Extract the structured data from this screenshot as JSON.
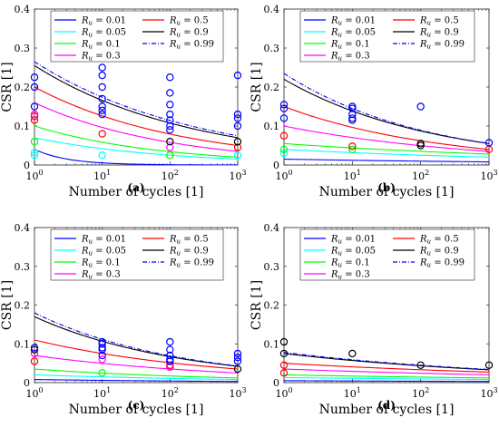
{
  "chart_data": [
    {
      "type": "line",
      "panel_label": "(a)",
      "xlabel": "Number of cycles [1]",
      "ylabel": "CSR [1]",
      "xscale": "log",
      "xlim": [
        1,
        1000
      ],
      "ylim": [
        0,
        0.4
      ],
      "x_ticks": [
        "10^0",
        "10^1",
        "10^2",
        "10^3"
      ],
      "y_ticks": [
        "0",
        "0.1",
        "0.2",
        "0.3",
        "0.4"
      ],
      "legend_position": "top",
      "legend": [
        "R_u = 0.01",
        "R_u = 0.05",
        "R_u = 0.1",
        "R_u = 0.3",
        "R_u = 0.5",
        "R_u = 0.9",
        "R_u = 0.99"
      ],
      "series": [
        {
          "name": "R_u = 0.01",
          "color": "#0000ff",
          "style": "solid",
          "x": [
            1,
            1000
          ],
          "y_start": 0.04,
          "y_end": 0.0
        },
        {
          "name": "R_u = 0.05",
          "color": "#00ffff",
          "style": "solid",
          "x": [
            1,
            1000
          ],
          "y_start": 0.07,
          "y_end": 0.015
        },
        {
          "name": "R_u = 0.1",
          "color": "#00ff00",
          "style": "solid",
          "x": [
            1,
            1000
          ],
          "y_start": 0.1,
          "y_end": 0.02
        },
        {
          "name": "R_u = 0.3",
          "color": "#ff00ff",
          "style": "solid",
          "x": [
            1,
            1000
          ],
          "y_start": 0.16,
          "y_end": 0.035
        },
        {
          "name": "R_u = 0.5",
          "color": "#ff0000",
          "style": "solid",
          "x": [
            1,
            1000
          ],
          "y_start": 0.2,
          "y_end": 0.05
        },
        {
          "name": "R_u = 0.9",
          "color": "#000000",
          "style": "solid",
          "x": [
            1,
            1000
          ],
          "y_start": 0.255,
          "y_end": 0.07
        },
        {
          "name": "R_u = 0.99",
          "color": "#0000ff",
          "style": "dashdot",
          "x": [
            1,
            1000
          ],
          "y_start": 0.265,
          "y_end": 0.075
        }
      ],
      "points": [
        {
          "x": 1,
          "y": 0.025,
          "color": "#00ffff"
        },
        {
          "x": 1,
          "y": 0.032,
          "color": "#00ffff"
        },
        {
          "x": 1,
          "y": 0.06,
          "color": "#00ff00"
        },
        {
          "x": 1,
          "y": 0.115,
          "color": "#ff0000"
        },
        {
          "x": 1,
          "y": 0.125,
          "color": "#ff0000"
        },
        {
          "x": 1,
          "y": 0.13,
          "color": "#ff00ff"
        },
        {
          "x": 1,
          "y": 0.15,
          "color": "#0000ff"
        },
        {
          "x": 1,
          "y": 0.2,
          "color": "#0000ff"
        },
        {
          "x": 1,
          "y": 0.225,
          "color": "#0000ff"
        },
        {
          "x": 10,
          "y": 0.025,
          "color": "#00ffff"
        },
        {
          "x": 10,
          "y": 0.08,
          "color": "#ff0000"
        },
        {
          "x": 10,
          "y": 0.13,
          "color": "#0000ff"
        },
        {
          "x": 10,
          "y": 0.14,
          "color": "#0000ff"
        },
        {
          "x": 10,
          "y": 0.15,
          "color": "#0000ff"
        },
        {
          "x": 10,
          "y": 0.17,
          "color": "#0000ff"
        },
        {
          "x": 10,
          "y": 0.2,
          "color": "#0000ff"
        },
        {
          "x": 10,
          "y": 0.23,
          "color": "#0000ff"
        },
        {
          "x": 10,
          "y": 0.25,
          "color": "#0000ff"
        },
        {
          "x": 100,
          "y": 0.025,
          "color": "#00ff00"
        },
        {
          "x": 100,
          "y": 0.045,
          "color": "#ff00ff"
        },
        {
          "x": 100,
          "y": 0.06,
          "color": "#000000"
        },
        {
          "x": 100,
          "y": 0.09,
          "color": "#0000ff"
        },
        {
          "x": 100,
          "y": 0.1,
          "color": "#0000ff"
        },
        {
          "x": 100,
          "y": 0.115,
          "color": "#0000ff"
        },
        {
          "x": 100,
          "y": 0.13,
          "color": "#0000ff"
        },
        {
          "x": 100,
          "y": 0.155,
          "color": "#0000ff"
        },
        {
          "x": 100,
          "y": 0.185,
          "color": "#0000ff"
        },
        {
          "x": 100,
          "y": 0.225,
          "color": "#0000ff"
        },
        {
          "x": 1000,
          "y": 0.025,
          "color": "#00ffff"
        },
        {
          "x": 1000,
          "y": 0.045,
          "color": "#ff0000"
        },
        {
          "x": 1000,
          "y": 0.06,
          "color": "#000000"
        },
        {
          "x": 1000,
          "y": 0.1,
          "color": "#0000ff"
        },
        {
          "x": 1000,
          "y": 0.12,
          "color": "#0000ff"
        },
        {
          "x": 1000,
          "y": 0.13,
          "color": "#0000ff"
        },
        {
          "x": 1000,
          "y": 0.23,
          "color": "#0000ff"
        }
      ]
    },
    {
      "type": "line",
      "panel_label": "(b)",
      "xlabel": "Number of cycles [1]",
      "ylabel": "CSR [1]",
      "xscale": "log",
      "xlim": [
        1,
        1000
      ],
      "ylim": [
        0,
        0.4
      ],
      "x_ticks": [
        "10^0",
        "10^1",
        "10^2",
        "10^3"
      ],
      "y_ticks": [
        "0",
        "0.1",
        "0.2",
        "0.3",
        "0.4"
      ],
      "legend_position": "top",
      "legend": [
        "R_u = 0.01",
        "R_u = 0.05",
        "R_u = 0.1",
        "R_u = 0.3",
        "R_u = 0.5",
        "R_u = 0.9",
        "R_u = 0.99"
      ],
      "series": [
        {
          "name": "R_u = 0.01",
          "color": "#0000ff",
          "style": "solid",
          "x": [
            1,
            1000
          ],
          "y_start": 0.015,
          "y_end": 0.008
        },
        {
          "name": "R_u = 0.05",
          "color": "#00ffff",
          "style": "solid",
          "x": [
            1,
            1000
          ],
          "y_start": 0.04,
          "y_end": 0.02
        },
        {
          "name": "R_u = 0.1",
          "color": "#00ff00",
          "style": "solid",
          "x": [
            1,
            1000
          ],
          "y_start": 0.055,
          "y_end": 0.028
        },
        {
          "name": "R_u = 0.3",
          "color": "#ff00ff",
          "style": "solid",
          "x": [
            1,
            1000
          ],
          "y_start": 0.1,
          "y_end": 0.035
        },
        {
          "name": "R_u = 0.5",
          "color": "#ff0000",
          "style": "solid",
          "x": [
            1,
            1000
          ],
          "y_start": 0.15,
          "y_end": 0.04
        },
        {
          "name": "R_u = 0.9",
          "color": "#000000",
          "style": "solid",
          "x": [
            1,
            1000
          ],
          "y_start": 0.22,
          "y_end": 0.055
        },
        {
          "name": "R_u = 0.99",
          "color": "#0000ff",
          "style": "dashdot",
          "x": [
            1,
            1000
          ],
          "y_start": 0.235,
          "y_end": 0.055
        }
      ],
      "points": [
        {
          "x": 1,
          "y": 0.03,
          "color": "#00ffff"
        },
        {
          "x": 1,
          "y": 0.04,
          "color": "#00ff00"
        },
        {
          "x": 1,
          "y": 0.075,
          "color": "#ff0000"
        },
        {
          "x": 1,
          "y": 0.12,
          "color": "#0000ff"
        },
        {
          "x": 1,
          "y": 0.145,
          "color": "#0000ff"
        },
        {
          "x": 1,
          "y": 0.155,
          "color": "#0000ff"
        },
        {
          "x": 10,
          "y": 0.04,
          "color": "#00ff00"
        },
        {
          "x": 10,
          "y": 0.048,
          "color": "#ff0000"
        },
        {
          "x": 10,
          "y": 0.115,
          "color": "#0000ff"
        },
        {
          "x": 10,
          "y": 0.12,
          "color": "#0000ff"
        },
        {
          "x": 10,
          "y": 0.13,
          "color": "#0000ff"
        },
        {
          "x": 10,
          "y": 0.145,
          "color": "#0000ff"
        },
        {
          "x": 10,
          "y": 0.15,
          "color": "#0000ff"
        },
        {
          "x": 100,
          "y": 0.05,
          "color": "#000000"
        },
        {
          "x": 100,
          "y": 0.055,
          "color": "#000000"
        },
        {
          "x": 100,
          "y": 0.15,
          "color": "#0000ff"
        },
        {
          "x": 1000,
          "y": 0.04,
          "color": "#ff0000"
        },
        {
          "x": 1000,
          "y": 0.057,
          "color": "#0000ff"
        }
      ]
    },
    {
      "type": "line",
      "panel_label": "(c)",
      "xlabel": "Number of cycles [1]",
      "ylabel": "CSR [1]",
      "xscale": "log",
      "xlim": [
        1,
        1000
      ],
      "ylim": [
        0,
        0.4
      ],
      "x_ticks": [
        "10^0",
        "10^1",
        "10^2",
        "10^3"
      ],
      "y_ticks": [
        "0",
        "0.1",
        "0.2",
        "0.3",
        "0.4"
      ],
      "legend_position": "top",
      "legend": [
        "R_u = 0.01",
        "R_u = 0.05",
        "R_u = 0.1",
        "R_u = 0.3",
        "R_u = 0.5",
        "R_u = 0.9",
        "R_u = 0.99"
      ],
      "series": [
        {
          "name": "R_u = 0.01",
          "color": "#0000ff",
          "style": "solid",
          "x": [
            1,
            1000
          ],
          "y_start": 0.008,
          "y_end": 0.003
        },
        {
          "name": "R_u = 0.05",
          "color": "#00ffff",
          "style": "solid",
          "x": [
            1,
            1000
          ],
          "y_start": 0.02,
          "y_end": 0.008
        },
        {
          "name": "R_u = 0.1",
          "color": "#00ff00",
          "style": "solid",
          "x": [
            1,
            1000
          ],
          "y_start": 0.035,
          "y_end": 0.012
        },
        {
          "name": "R_u = 0.3",
          "color": "#ff00ff",
          "style": "solid",
          "x": [
            1,
            1000
          ],
          "y_start": 0.07,
          "y_end": 0.025
        },
        {
          "name": "R_u = 0.5",
          "color": "#ff0000",
          "style": "solid",
          "x": [
            1,
            1000
          ],
          "y_start": 0.11,
          "y_end": 0.035
        },
        {
          "name": "R_u = 0.9",
          "color": "#000000",
          "style": "solid",
          "x": [
            1,
            1000
          ],
          "y_start": 0.17,
          "y_end": 0.042
        },
        {
          "name": "R_u = 0.99",
          "color": "#0000ff",
          "style": "dashdot",
          "x": [
            1,
            1000
          ],
          "y_start": 0.18,
          "y_end": 0.043
        }
      ],
      "points": [
        {
          "x": 1,
          "y": 0.055,
          "color": "#ff0000"
        },
        {
          "x": 1,
          "y": 0.075,
          "color": "#ff00ff"
        },
        {
          "x": 1,
          "y": 0.085,
          "color": "#000000"
        },
        {
          "x": 1,
          "y": 0.09,
          "color": "#0000ff"
        },
        {
          "x": 10,
          "y": 0.025,
          "color": "#00ff00"
        },
        {
          "x": 10,
          "y": 0.06,
          "color": "#ff00ff"
        },
        {
          "x": 10,
          "y": 0.07,
          "color": "#0000ff"
        },
        {
          "x": 10,
          "y": 0.085,
          "color": "#0000ff"
        },
        {
          "x": 10,
          "y": 0.09,
          "color": "#0000ff"
        },
        {
          "x": 10,
          "y": 0.1,
          "color": "#0000ff"
        },
        {
          "x": 10,
          "y": 0.105,
          "color": "#0000ff"
        },
        {
          "x": 100,
          "y": 0.04,
          "color": "#ff00ff"
        },
        {
          "x": 100,
          "y": 0.045,
          "color": "#ff0000"
        },
        {
          "x": 100,
          "y": 0.055,
          "color": "#0000ff"
        },
        {
          "x": 100,
          "y": 0.06,
          "color": "#0000ff"
        },
        {
          "x": 100,
          "y": 0.07,
          "color": "#0000ff"
        },
        {
          "x": 100,
          "y": 0.085,
          "color": "#0000ff"
        },
        {
          "x": 100,
          "y": 0.105,
          "color": "#0000ff"
        },
        {
          "x": 1000,
          "y": 0.035,
          "color": "#000000"
        },
        {
          "x": 1000,
          "y": 0.055,
          "color": "#0000ff"
        },
        {
          "x": 1000,
          "y": 0.065,
          "color": "#0000ff"
        },
        {
          "x": 1000,
          "y": 0.075,
          "color": "#0000ff"
        }
      ]
    },
    {
      "type": "line",
      "panel_label": "(d)",
      "xlabel": "Number of cycles [1]",
      "ylabel": "CSR [1]",
      "xscale": "log",
      "xlim": [
        1,
        1000
      ],
      "ylim": [
        0,
        0.4
      ],
      "x_ticks": [
        "10^0",
        "10^1",
        "10^2",
        "10^3"
      ],
      "y_ticks": [
        "0",
        "0.1",
        "0.2",
        "0.3",
        "0.4"
      ],
      "legend_position": "top",
      "legend": [
        "R_u = 0.01",
        "R_u = 0.05",
        "R_u = 0.1",
        "R_u = 0.3",
        "R_u = 0.5",
        "R_u = 0.9",
        "R_u = 0.99"
      ],
      "series": [
        {
          "name": "R_u = 0.01",
          "color": "#0000ff",
          "style": "solid",
          "x": [
            1,
            1000
          ],
          "y_start": 0.005,
          "y_end": 0.003
        },
        {
          "name": "R_u = 0.05",
          "color": "#00ffff",
          "style": "solid",
          "x": [
            1,
            1000
          ],
          "y_start": 0.013,
          "y_end": 0.008
        },
        {
          "name": "R_u = 0.1",
          "color": "#00ff00",
          "style": "solid",
          "x": [
            1,
            1000
          ],
          "y_start": 0.02,
          "y_end": 0.012
        },
        {
          "name": "R_u = 0.3",
          "color": "#ff00ff",
          "style": "solid",
          "x": [
            1,
            1000
          ],
          "y_start": 0.035,
          "y_end": 0.02
        },
        {
          "name": "R_u = 0.5",
          "color": "#ff0000",
          "style": "solid",
          "x": [
            1,
            1000
          ],
          "y_start": 0.05,
          "y_end": 0.027
        },
        {
          "name": "R_u = 0.9",
          "color": "#000000",
          "style": "solid",
          "x": [
            1,
            1000
          ],
          "y_start": 0.075,
          "y_end": 0.033
        },
        {
          "name": "R_u = 0.99",
          "color": "#0000ff",
          "style": "dashdot",
          "x": [
            1,
            1000
          ],
          "y_start": 0.078,
          "y_end": 0.034
        }
      ],
      "points": [
        {
          "x": 1,
          "y": 0.025,
          "color": "#ff0000"
        },
        {
          "x": 1,
          "y": 0.045,
          "color": "#ff0000"
        },
        {
          "x": 1,
          "y": 0.075,
          "color": "#000000"
        },
        {
          "x": 1,
          "y": 0.105,
          "color": "#000000"
        },
        {
          "x": 10,
          "y": 0.075,
          "color": "#000000"
        },
        {
          "x": 100,
          "y": 0.045,
          "color": "#000000"
        },
        {
          "x": 1000,
          "y": 0.045,
          "color": "#000000"
        }
      ]
    }
  ]
}
